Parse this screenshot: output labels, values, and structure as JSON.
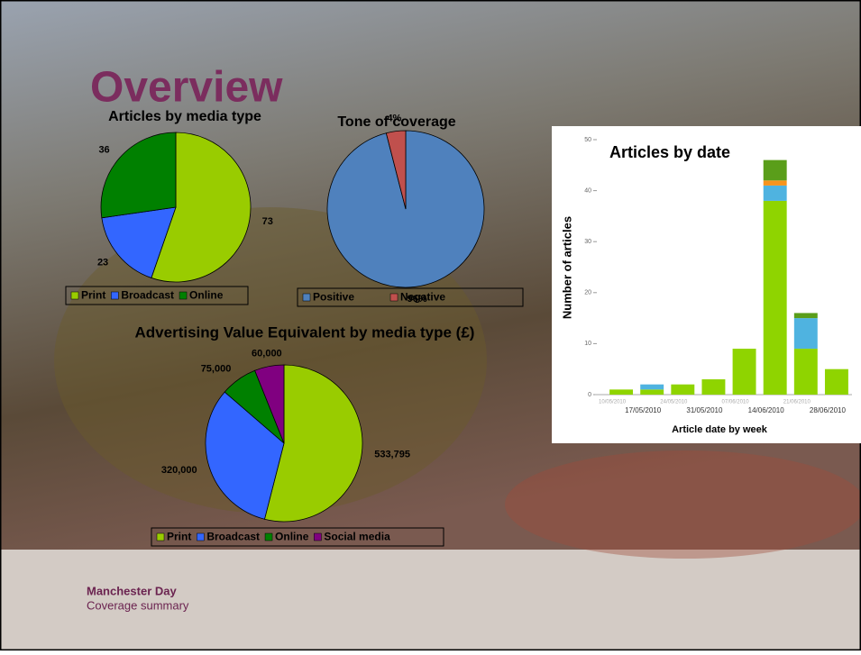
{
  "title": "Overview",
  "chart_data": [
    {
      "type": "pie",
      "title": "Articles by media type",
      "categories": [
        "Print",
        "Broadcast",
        "Online"
      ],
      "values": [
        73,
        23,
        36
      ],
      "colors": [
        "#99cc00",
        "#3366ff",
        "#008000"
      ],
      "legend": "bottom"
    },
    {
      "type": "pie",
      "title": "Tone of coverage",
      "categories": [
        "Positive",
        "Negative"
      ],
      "values": [
        96,
        4
      ],
      "value_labels": [
        "96%",
        "4%"
      ],
      "colors": [
        "#4f81bd",
        "#c0504d"
      ],
      "legend": "bottom"
    },
    {
      "type": "pie",
      "title": "Advertising Value Equivalent by media type (£)",
      "categories": [
        "Print",
        "Broadcast",
        "Online",
        "Social media"
      ],
      "values": [
        533795,
        320000,
        75000,
        60000
      ],
      "value_labels": [
        "533,795",
        "320,000",
        "75,000",
        "60,000"
      ],
      "colors": [
        "#99cc00",
        "#3366ff",
        "#008000",
        "#800080"
      ],
      "legend": "bottom"
    },
    {
      "type": "stacked-bar",
      "title": "Articles by date",
      "xlabel": "Article date by week",
      "ylabel": "Number of articles",
      "categories": [
        "10/05/2010",
        "17/05/2010",
        "24/05/2010",
        "31/05/2010",
        "07/06/2010",
        "14/06/2010",
        "21/06/2010",
        "28/06/2010"
      ],
      "series": [
        {
          "color": "#8fd400",
          "values": [
            1,
            1,
            2,
            3,
            9,
            38,
            9,
            5
          ]
        },
        {
          "color": "#4fb3e0",
          "values": [
            0,
            1,
            0,
            0,
            0,
            3,
            6,
            0
          ]
        },
        {
          "color": "#f7941d",
          "values": [
            0,
            0,
            0,
            0,
            0,
            1,
            0,
            0
          ]
        },
        {
          "color": "#5a9e1a",
          "values": [
            0,
            0,
            0,
            0,
            0,
            4,
            1,
            0
          ]
        }
      ],
      "ylim": [
        0,
        50
      ],
      "yticks": [
        0,
        10,
        20,
        30,
        40,
        50
      ]
    }
  ],
  "footer": {
    "title": "Manchester Day",
    "subtitle": "Coverage summary"
  }
}
